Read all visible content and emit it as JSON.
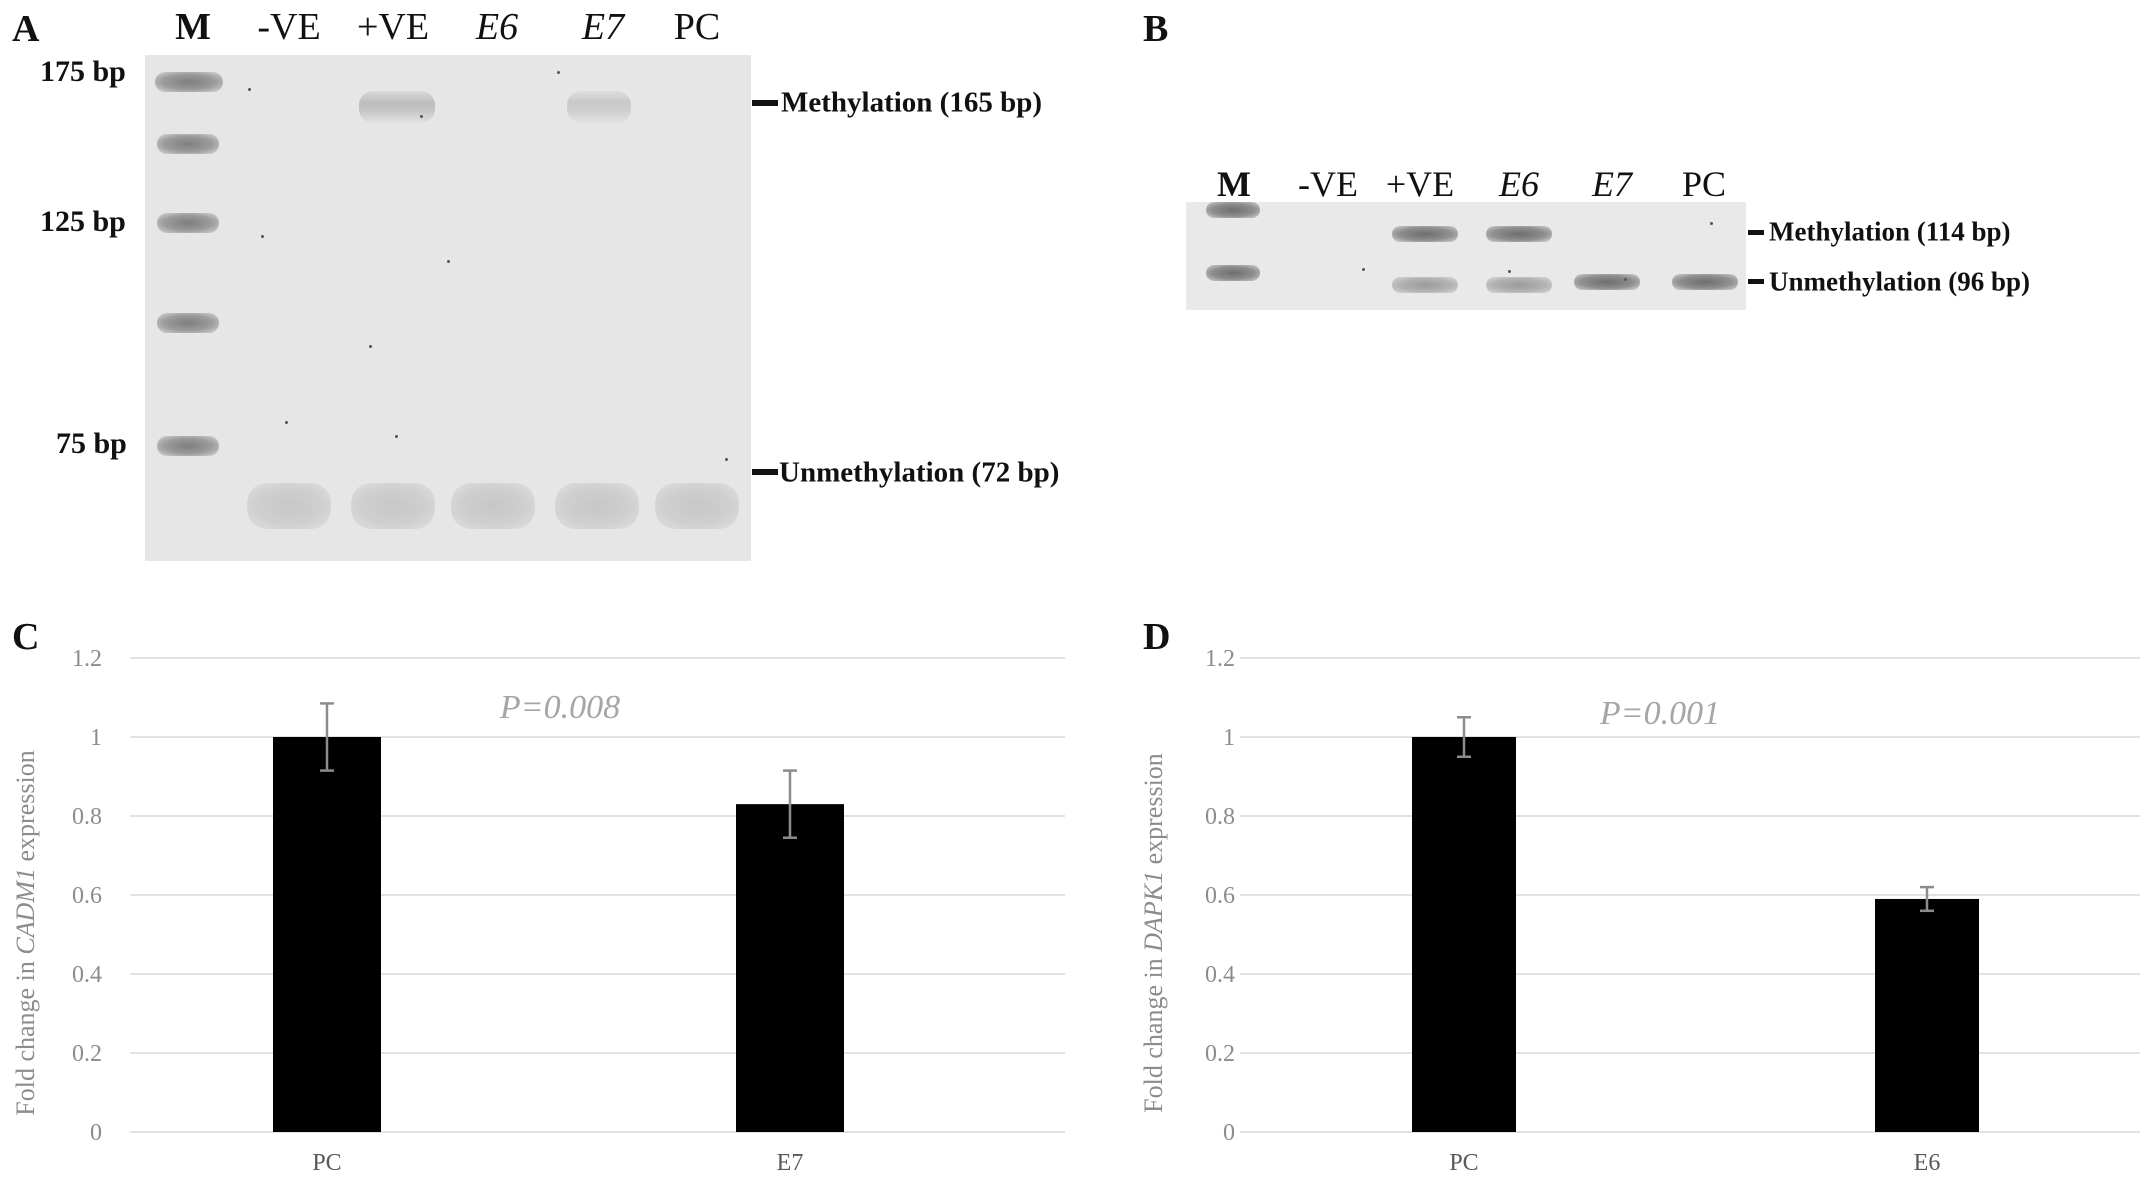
{
  "panels": {
    "a": {
      "label": "A",
      "lanes": [
        "M",
        "-VE",
        "+VE",
        "E6",
        "E7",
        "PC"
      ],
      "ladder_labels": [
        "175 bp",
        "125 bp",
        "75 bp"
      ],
      "methylation_label": "Methylation (165 bp)",
      "unmethylation_label": "Unmethylation (72 bp)"
    },
    "b": {
      "label": "B",
      "lanes": [
        "M",
        "-VE",
        "+VE",
        "E6",
        "E7",
        "PC"
      ],
      "methylation_label": "Methylation (114 bp)",
      "unmethylation_label": "Unmethylation (96 bp)"
    },
    "c": {
      "label": "C"
    },
    "d": {
      "label": "D"
    }
  },
  "chart_data": [
    {
      "type": "bar",
      "categories": [
        "PC",
        "E7"
      ],
      "values": [
        1.0,
        0.83
      ],
      "errors": [
        0.085,
        0.085
      ],
      "ylim": [
        0,
        1.2
      ],
      "yticks": [
        "0",
        "0.2",
        "0.4",
        "0.6",
        "0.8",
        "1",
        "1.2"
      ],
      "ylabel_prefix": "Fold change in ",
      "ylabel_gene": "CADM1",
      "ylabel_suffix": " expression",
      "annotation": "P=0.008",
      "grid": true,
      "bar_color": "#000000"
    },
    {
      "type": "bar",
      "categories": [
        "PC",
        "E6"
      ],
      "values": [
        1.0,
        0.59
      ],
      "errors": [
        0.05,
        0.03
      ],
      "ylim": [
        0,
        1.2
      ],
      "yticks": [
        "0",
        "0.2",
        "0.4",
        "0.6",
        "0.8",
        "1",
        "1.2"
      ],
      "ylabel_prefix": "Fold change in ",
      "ylabel_gene": "DAPK1",
      "ylabel_suffix": " expression",
      "annotation": "P=0.001",
      "grid": true,
      "bar_color": "#000000"
    }
  ]
}
